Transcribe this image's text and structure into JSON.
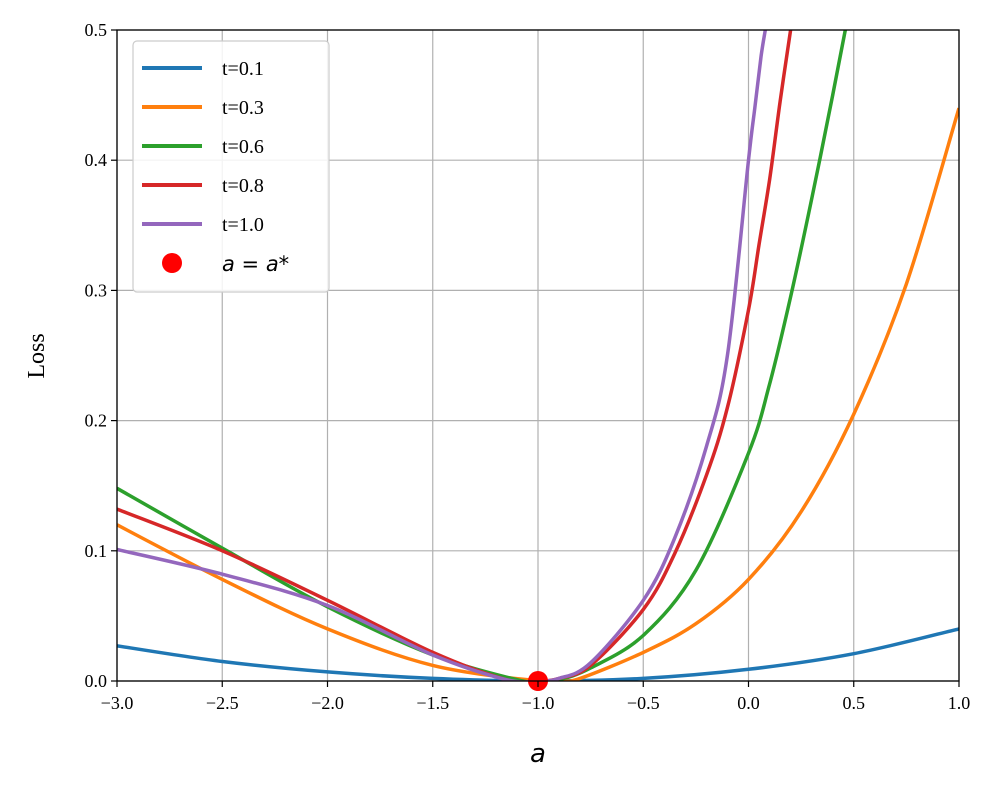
{
  "chart_data": {
    "type": "line",
    "xlabel": "a",
    "ylabel": "Loss",
    "xlim": [
      -3.0,
      1.0
    ],
    "ylim": [
      0.0,
      0.5
    ],
    "x_ticks": [
      "−3.0",
      "−2.5",
      "−2.0",
      "−1.5",
      "−1.0",
      "−0.5",
      "0.0",
      "0.5",
      "1.0"
    ],
    "x_tick_values": [
      -3.0,
      -2.5,
      -2.0,
      -1.5,
      -1.0,
      -0.5,
      0.0,
      0.5,
      1.0
    ],
    "y_ticks": [
      "0.0",
      "0.1",
      "0.2",
      "0.3",
      "0.4",
      "0.5"
    ],
    "y_tick_values": [
      0.0,
      0.1,
      0.2,
      0.3,
      0.4,
      0.5
    ],
    "grid": true,
    "legend_position": "top-left",
    "series": [
      {
        "name": "t=0.1",
        "color": "#1f77b4",
        "x": [
          -3.0,
          -2.5,
          -2.0,
          -1.5,
          -1.0,
          -0.5,
          0.0,
          0.5,
          1.0
        ],
        "y": [
          0.027,
          0.015,
          0.007,
          0.002,
          0.0,
          0.002,
          0.009,
          0.021,
          0.04
        ]
      },
      {
        "name": "t=0.3",
        "color": "#ff7f0e",
        "x": [
          -3.0,
          -2.5,
          -2.0,
          -1.5,
          -1.0,
          -0.9,
          -0.8,
          -0.5,
          -0.25,
          0.0,
          0.25,
          0.5,
          0.75,
          1.0
        ],
        "y": [
          0.12,
          0.078,
          0.04,
          0.012,
          0.0,
          0.0,
          0.002,
          0.022,
          0.044,
          0.078,
          0.13,
          0.205,
          0.305,
          0.44
        ]
      },
      {
        "name": "t=0.6",
        "color": "#2ca02c",
        "x": [
          -3.0,
          -2.5,
          -2.0,
          -1.5,
          -1.1,
          -1.0,
          -0.9,
          -0.75,
          -0.5,
          -0.25,
          0.0,
          0.1,
          0.2,
          0.3,
          0.4,
          0.46
        ],
        "y": [
          0.148,
          0.102,
          0.057,
          0.02,
          0.001,
          0.0,
          0.001,
          0.01,
          0.035,
          0.085,
          0.175,
          0.228,
          0.295,
          0.37,
          0.45,
          0.5
        ]
      },
      {
        "name": "t=0.8",
        "color": "#d62728",
        "x": [
          -3.0,
          -2.5,
          -2.0,
          -1.5,
          -1.15,
          -1.0,
          -0.9,
          -0.75,
          -0.5,
          -0.35,
          -0.2,
          -0.1,
          0.0,
          0.05,
          0.1,
          0.15,
          0.2
        ],
        "y": [
          0.132,
          0.1,
          0.062,
          0.022,
          0.001,
          0.0,
          0.002,
          0.012,
          0.055,
          0.098,
          0.158,
          0.21,
          0.285,
          0.335,
          0.385,
          0.445,
          0.5
        ]
      },
      {
        "name": "t=1.0",
        "color": "#9467bd",
        "x": [
          -3.0,
          -2.5,
          -2.0,
          -1.5,
          -1.15,
          -1.0,
          -0.9,
          -0.75,
          -0.5,
          -0.35,
          -0.2,
          -0.1,
          0.0,
          0.03,
          0.06,
          0.08
        ],
        "y": [
          0.101,
          0.082,
          0.058,
          0.02,
          0.001,
          0.0,
          0.002,
          0.014,
          0.062,
          0.11,
          0.18,
          0.25,
          0.4,
          0.44,
          0.48,
          0.5
        ]
      }
    ],
    "marker": {
      "label": "a = a*",
      "x": -1.0,
      "y": 0.0,
      "color": "#ff0000"
    }
  }
}
